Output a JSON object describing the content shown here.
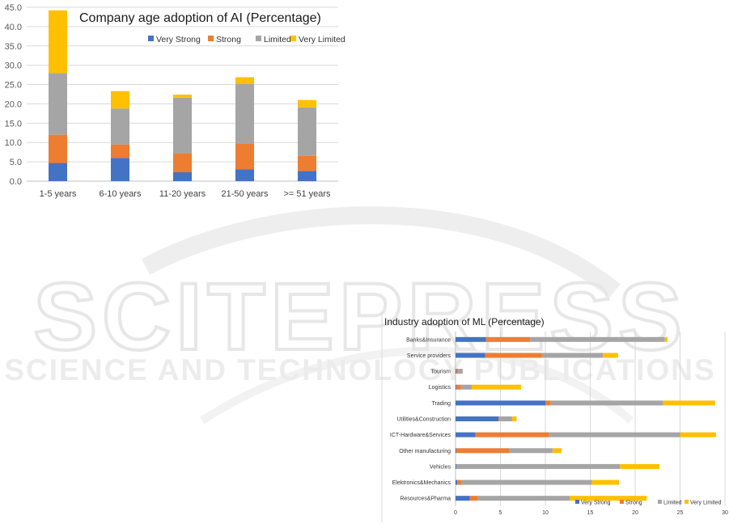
{
  "watermark": {
    "main": "SCITEPRESS",
    "sub": "SCIENCE AND TECHNOLOGY PUBLICATIONS"
  },
  "chart_data": [
    {
      "type": "bar",
      "stacked": true,
      "orientation": "vertical",
      "title": "Company age adoption of AI (Percentage)",
      "categories": [
        "1-5 years",
        "6-10 years",
        "11-20 years",
        "21-50 years",
        ">= 51 years"
      ],
      "series": [
        {
          "name": "Very Strong",
          "color": "#4472c4",
          "values": [
            4.7,
            6.0,
            2.3,
            3.1,
            2.6
          ]
        },
        {
          "name": "Strong",
          "color": "#ed7d31",
          "values": [
            7.3,
            3.5,
            4.9,
            6.7,
            3.9
          ]
        },
        {
          "name": "Limited",
          "color": "#a5a5a5",
          "values": [
            16.0,
            9.3,
            14.4,
            15.4,
            12.6
          ]
        },
        {
          "name": "Very Limited",
          "color": "#ffc000",
          "values": [
            16.2,
            4.5,
            0.8,
            1.7,
            1.9
          ]
        }
      ],
      "ylim": [
        0,
        45
      ],
      "yticks": [
        "0.0",
        "5.0",
        "10.0",
        "15.0",
        "20.0",
        "25.0",
        "30.0",
        "35.0",
        "40.0",
        "45.0"
      ],
      "legend": "top-right",
      "grid": true
    },
    {
      "type": "bar",
      "stacked": true,
      "orientation": "horizontal",
      "title": "Industry adoption of ML (Percentage)",
      "categories": [
        "Banks&Insurance",
        "Service providers",
        "Tourism",
        "Logistics",
        "Trading",
        "Utilities&Construction",
        "ICT-Hardware&Services",
        "Other manufacturing",
        "Vehicles",
        "Elektronics&Mechanics",
        "Resources&Pharma"
      ],
      "series": [
        {
          "name": "Very Strong",
          "color": "#4472c4",
          "values": [
            3.4,
            3.3,
            0.1,
            0.1,
            10.0,
            4.8,
            2.2,
            0.1,
            0.1,
            0.2,
            1.6
          ]
        },
        {
          "name": "Strong",
          "color": "#ed7d31",
          "values": [
            4.9,
            6.3,
            0.2,
            0.5,
            0.6,
            0.1,
            8.2,
            5.9,
            0.0,
            0.5,
            0.9
          ]
        },
        {
          "name": "Limited",
          "color": "#a5a5a5",
          "values": [
            15.0,
            6.8,
            0.5,
            1.2,
            12.5,
            1.4,
            14.6,
            4.8,
            18.2,
            14.5,
            10.2
          ]
        },
        {
          "name": "Very Limited",
          "color": "#ffc000",
          "values": [
            0.3,
            1.7,
            0.0,
            5.5,
            5.8,
            0.5,
            4.0,
            1.0,
            4.4,
            3.0,
            8.6
          ]
        }
      ],
      "xlim": [
        0,
        30
      ],
      "xticks": [
        "0",
        "5",
        "10",
        "15",
        "20",
        "25",
        "30"
      ],
      "legend": "bottom-right",
      "grid": true
    }
  ]
}
